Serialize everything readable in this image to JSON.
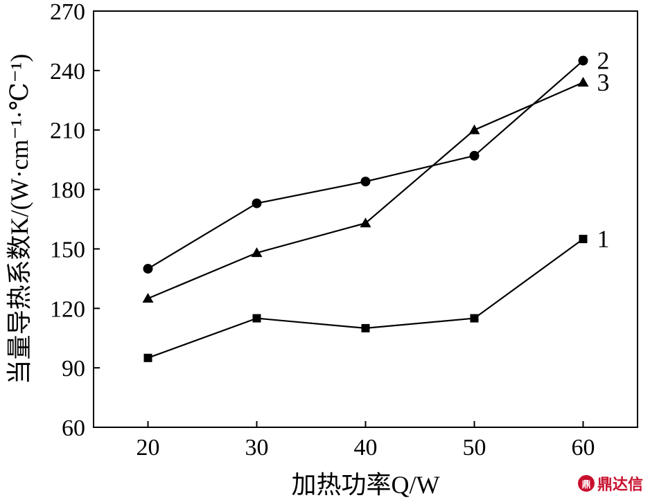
{
  "chart_data": {
    "type": "line",
    "xlabel": "加热功率Q/W",
    "ylabel": "当量导热系数K/(W·cm⁻¹·℃⁻¹)",
    "x": [
      20,
      30,
      40,
      50,
      60
    ],
    "xlim": [
      15,
      65
    ],
    "ylim": [
      60,
      270
    ],
    "xticks": [
      20,
      30,
      40,
      50,
      60
    ],
    "yticks": [
      60,
      90,
      120,
      150,
      180,
      210,
      240,
      270
    ],
    "grid": false,
    "legend": "none",
    "series": [
      {
        "name": "1",
        "marker": "square",
        "values": [
          95,
          115,
          110,
          115,
          155
        ]
      },
      {
        "name": "2",
        "marker": "circle",
        "values": [
          140,
          173,
          184,
          197,
          245
        ]
      },
      {
        "name": "3",
        "marker": "triangle",
        "values": [
          125,
          148,
          163,
          210,
          234
        ]
      }
    ]
  },
  "watermark": {
    "text": "鼎达信",
    "logo": "鼎"
  }
}
